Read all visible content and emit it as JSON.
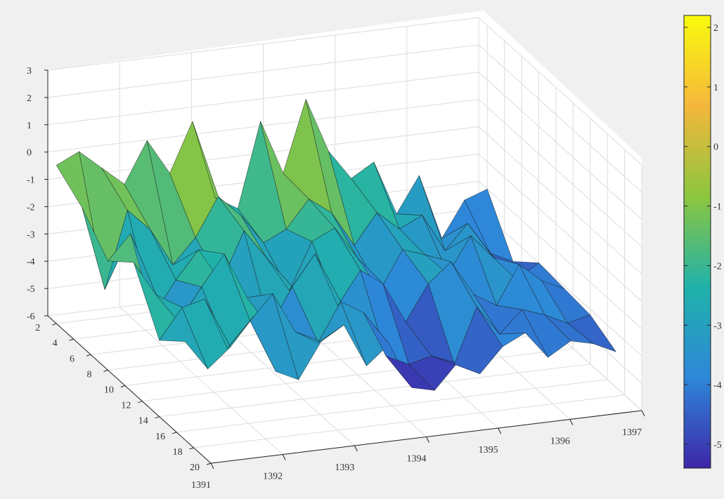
{
  "chart_data": {
    "type": "surface",
    "x_ticks": [
      1391,
      1392,
      1393,
      1394,
      1395,
      1396,
      1397
    ],
    "y_ticks": [
      2,
      4,
      6,
      8,
      10,
      12,
      14,
      16,
      18,
      20
    ],
    "z_ticks": [
      3,
      2,
      1,
      0,
      -1,
      -2,
      -3,
      -4,
      -5,
      -6
    ],
    "zlim": [
      -6,
      3
    ],
    "grid": true,
    "colormap": "parula",
    "colorbar": {
      "ticks": [
        2,
        1,
        0,
        -1,
        -2,
        -3,
        -4,
        -5
      ],
      "range": [
        -5.4,
        2.2
      ],
      "placement": "right"
    },
    "colors": {
      "parula_low": "#3e26a8",
      "parula_mid_low": "#2e87d9",
      "parula_mid": "#20b2aa",
      "parula_mid_high": "#8cc63f",
      "parula_high": "#f4b73b",
      "parula_top": "#f9fb0e"
    },
    "rows": [
      {
        "y": 2,
        "z": [
          -0.2,
          0.2,
          -0.5,
          -1.2,
          0.3,
          -1.0,
          0.8,
          -2.1,
          -2.6,
          0.5,
          -1.5,
          1.1,
          -0.9,
          -2.0,
          -1.5,
          -3.5,
          -2.2,
          -4.6,
          -3.3,
          -3.0
        ]
      },
      {
        "y": 5,
        "z": [
          -0.9,
          -4.0,
          -1.2,
          -2.0,
          -3.4,
          -2.5,
          -1.1,
          -1.9,
          -3.0,
          -2.6,
          -1.6,
          -2.2,
          -3.5,
          -2.4,
          -3.1,
          -2.7,
          -4.1,
          -3.2,
          -4.4,
          -4.8
        ]
      },
      {
        "y": 8,
        "z": [
          -2.0,
          -1.1,
          -4.2,
          -3.0,
          -2.0,
          -3.3,
          -1.5,
          -2.6,
          -3.9,
          -2.2,
          -1.8,
          -3.0,
          -4.3,
          -2.9,
          -3.2,
          -4.0,
          -2.7,
          -3.6,
          -4.5,
          -4.0
        ]
      },
      {
        "y": 11,
        "z": [
          -1.2,
          -2.5,
          -3.6,
          -2.4,
          -1.3,
          -3.0,
          -4.2,
          -2.8,
          -1.7,
          -3.7,
          -2.5,
          -3.1,
          -4.6,
          -3.3,
          -2.6,
          -3.9,
          -4.4,
          -3.0,
          -3.7,
          -4.1
        ]
      },
      {
        "y": 14,
        "z": [
          -3.2,
          -2.1,
          -1.9,
          -3.8,
          -2.9,
          -2.0,
          -3.5,
          -4.0,
          -2.6,
          -3.1,
          -4.8,
          -5.2,
          -5.0,
          -5.4,
          -3.4,
          -4.5,
          -3.7,
          -4.0,
          -4.4,
          -4.2
        ]
      },
      {
        "y": 17,
        "z": [
          -2.4,
          -3.5,
          -2.8,
          -1.8,
          -3.9,
          -4.3,
          -3.0,
          -2.5,
          -4.1,
          -3.4,
          -5.1,
          -5.3,
          -4.4,
          -4.9,
          -4.0,
          -3.6,
          -4.6,
          -4.1,
          -4.3,
          -4.7
        ]
      }
    ]
  }
}
